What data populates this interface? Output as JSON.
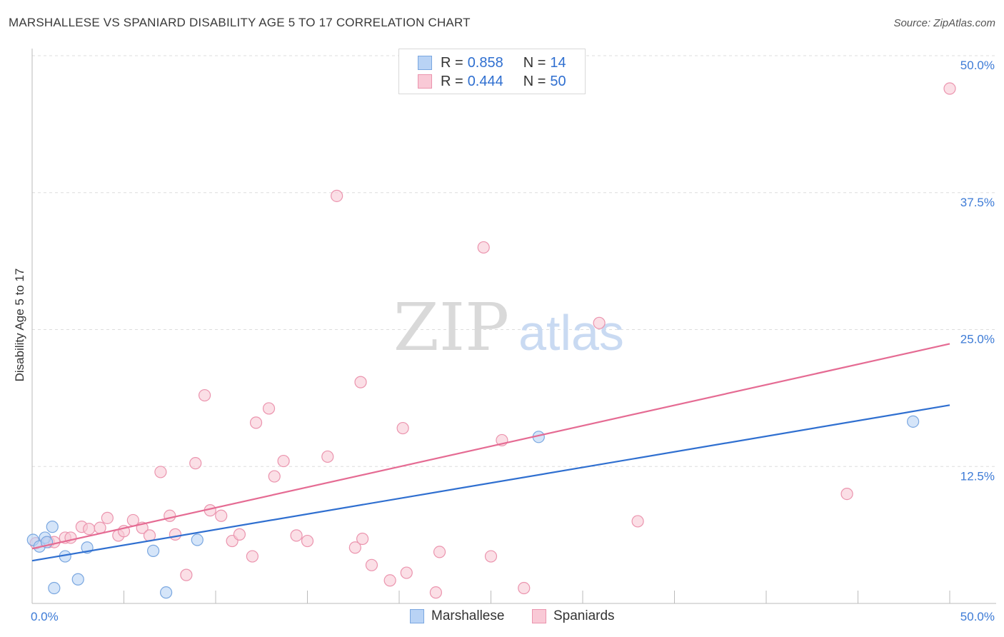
{
  "title": "MARSHALLESE VS SPANIARD DISABILITY AGE 5 TO 17 CORRELATION CHART",
  "source": "Source: ZipAtlas.com",
  "watermark": {
    "zip": "ZIP",
    "atlas": "atlas"
  },
  "legend": {
    "r_label": "R =",
    "n_label": "N =",
    "rows": [
      {
        "r": "0.858",
        "n": "14",
        "fill": "#b9d3f5",
        "stroke": "#7aa7e0"
      },
      {
        "r": "0.444",
        "n": "50",
        "fill": "#f9c9d6",
        "stroke": "#eb94ae"
      }
    ]
  },
  "bottom_legend": [
    "Marshallese",
    "Spaniards"
  ],
  "colors": {
    "blue_fill": "#b9d3f5",
    "blue_stroke": "#7aa7e0",
    "blue_line": "#2f6fd0",
    "pink_fill": "#f9c9d6",
    "pink_stroke": "#eb94ae",
    "pink_line": "#e56b93",
    "grid": "#dddddd",
    "tick_label": "#3d7bd6"
  },
  "chart_data": {
    "type": "scatter",
    "title": "MARSHALLESE VS SPANIARD DISABILITY AGE 5 TO 17 CORRELATION CHART",
    "xlabel": "",
    "ylabel": "Disability Age 5 to 17",
    "xlim": [
      0,
      50
    ],
    "ylim": [
      0,
      50
    ],
    "x_tick_labels": [
      "0.0%",
      "50.0%"
    ],
    "y_ticks": [
      12.5,
      25.0,
      37.5,
      50.0
    ],
    "y_tick_labels": [
      "12.5%",
      "25.0%",
      "37.5%",
      "50.0%"
    ],
    "grid": true,
    "legend_position": "top-center",
    "series": [
      {
        "name": "Marshallese",
        "r": 0.858,
        "n": 14,
        "points": [
          [
            0.05,
            5.8
          ],
          [
            0.4,
            5.2
          ],
          [
            0.7,
            6.0
          ],
          [
            0.8,
            5.6
          ],
          [
            1.1,
            7.0
          ],
          [
            1.2,
            1.4
          ],
          [
            1.8,
            4.3
          ],
          [
            2.5,
            2.2
          ],
          [
            3.0,
            5.1
          ],
          [
            6.6,
            4.8
          ],
          [
            7.3,
            1.0
          ],
          [
            9.0,
            5.8
          ],
          [
            27.6,
            15.2
          ],
          [
            48.0,
            16.6
          ]
        ],
        "trend": {
          "x": [
            0,
            50
          ],
          "y": [
            3.9,
            18.1
          ]
        }
      },
      {
        "name": "Spaniards",
        "r": 0.444,
        "n": 50,
        "points": [
          [
            0.2,
            5.5
          ],
          [
            0.9,
            5.6
          ],
          [
            1.2,
            5.6
          ],
          [
            1.8,
            6.0
          ],
          [
            2.1,
            6.0
          ],
          [
            2.7,
            7.0
          ],
          [
            3.1,
            6.8
          ],
          [
            3.7,
            6.9
          ],
          [
            4.1,
            7.8
          ],
          [
            4.7,
            6.2
          ],
          [
            5.0,
            6.6
          ],
          [
            5.5,
            7.6
          ],
          [
            6.0,
            6.9
          ],
          [
            6.4,
            6.2
          ],
          [
            7.0,
            12.0
          ],
          [
            7.5,
            8.0
          ],
          [
            7.8,
            6.3
          ],
          [
            8.4,
            2.6
          ],
          [
            8.9,
            12.8
          ],
          [
            9.4,
            19.0
          ],
          [
            9.7,
            8.5
          ],
          [
            10.3,
            8.0
          ],
          [
            10.9,
            5.7
          ],
          [
            11.3,
            6.3
          ],
          [
            12.0,
            4.3
          ],
          [
            12.2,
            16.5
          ],
          [
            12.9,
            17.8
          ],
          [
            13.2,
            11.6
          ],
          [
            13.7,
            13.0
          ],
          [
            14.4,
            6.2
          ],
          [
            15.0,
            5.7
          ],
          [
            16.1,
            13.4
          ],
          [
            16.6,
            37.2
          ],
          [
            17.6,
            5.1
          ],
          [
            17.9,
            20.2
          ],
          [
            18.0,
            5.9
          ],
          [
            18.5,
            3.5
          ],
          [
            19.5,
            2.1
          ],
          [
            20.2,
            16.0
          ],
          [
            20.4,
            2.8
          ],
          [
            22.0,
            1.0
          ],
          [
            22.2,
            4.7
          ],
          [
            24.6,
            32.5
          ],
          [
            25.0,
            4.3
          ],
          [
            25.6,
            14.9
          ],
          [
            26.8,
            1.4
          ],
          [
            30.9,
            25.6
          ],
          [
            33.0,
            7.5
          ],
          [
            44.4,
            10.0
          ],
          [
            50.0,
            47.0
          ]
        ],
        "trend": {
          "x": [
            0,
            50
          ],
          "y": [
            5.0,
            23.7
          ]
        }
      }
    ]
  }
}
